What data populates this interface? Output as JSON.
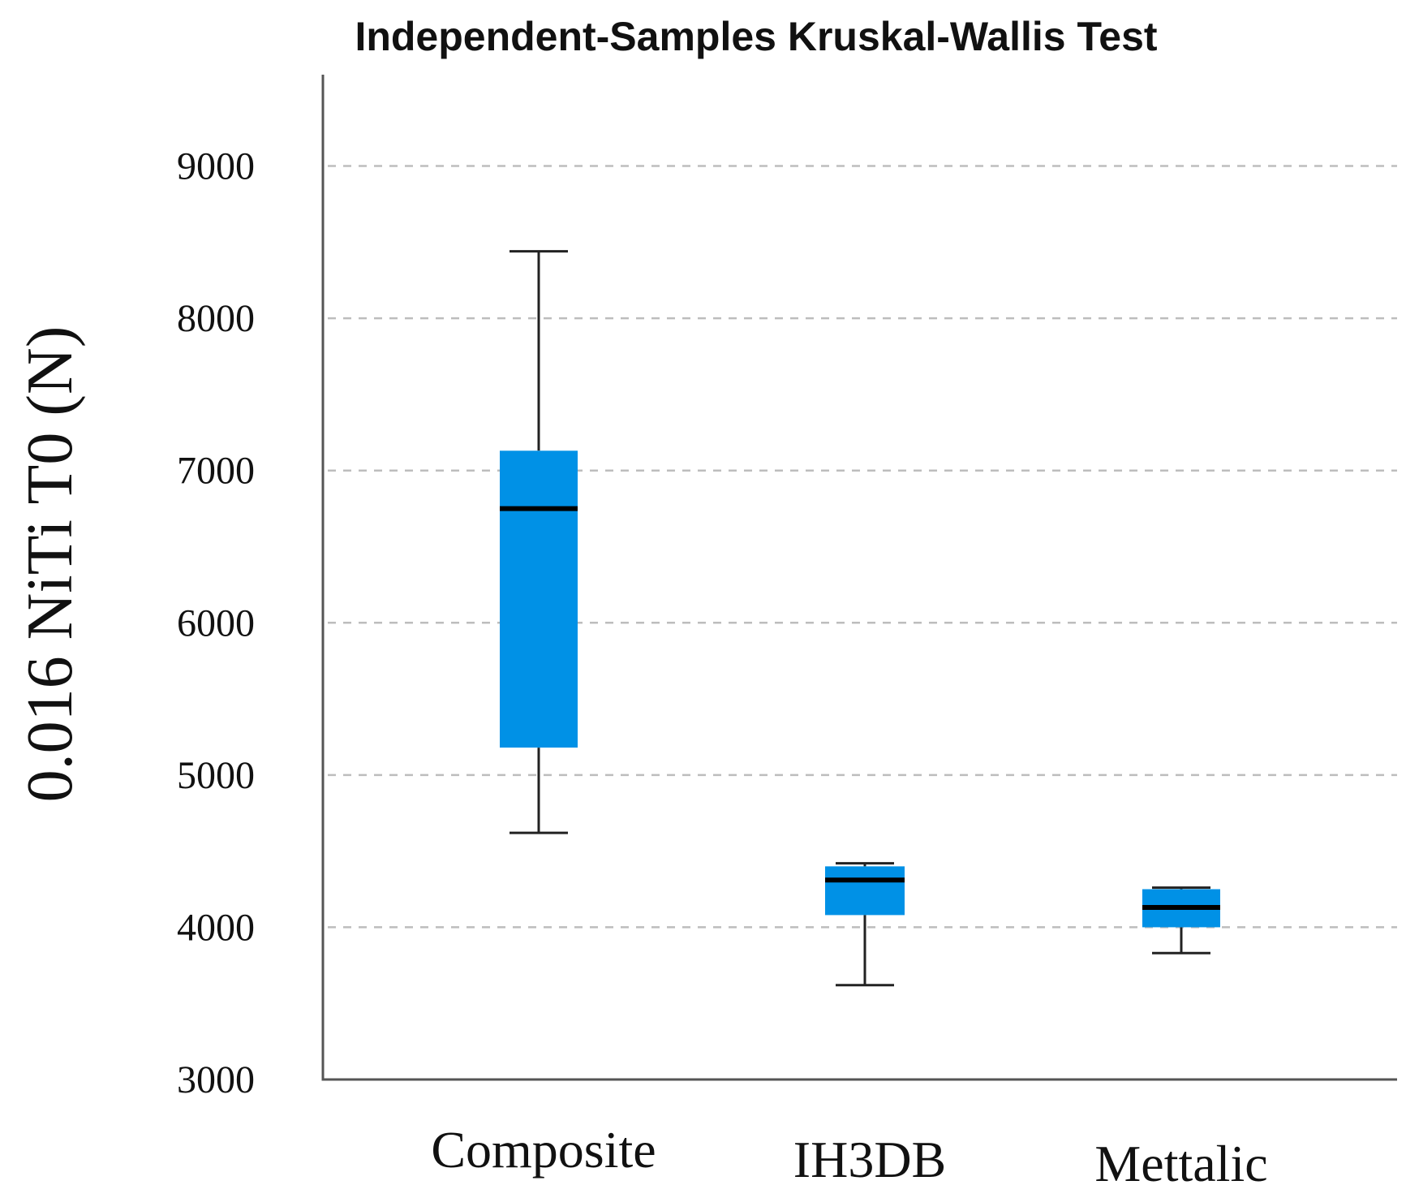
{
  "chart_data": {
    "type": "boxplot",
    "title": "Independent-Samples Kruskal-Wallis Test",
    "xlabel": "",
    "ylabel": "0.016 NiTi T0 (N)",
    "ylim": [
      3000,
      9600
    ],
    "yticks": [
      9000,
      8000,
      7000,
      6000,
      5000,
      4000,
      3000
    ],
    "grid": true,
    "categories": [
      "Composite",
      "IH3DB",
      "Mettalic"
    ],
    "boxes": [
      {
        "category": "Composite",
        "min": 4620,
        "q1": 5180,
        "median": 6750,
        "q3": 7130,
        "max": 8440
      },
      {
        "category": "IH3DB",
        "min": 3620,
        "q1": 4080,
        "median": 4310,
        "q3": 4400,
        "max": 4420
      },
      {
        "category": "Mettalic",
        "min": 3830,
        "q1": 4000,
        "median": 4130,
        "q3": 4250,
        "max": 4260
      }
    ],
    "colors": {
      "box": "#0091e6",
      "median": "#000000",
      "whisker": "#222222",
      "grid": "#bdbdbd",
      "axis": "#555555"
    }
  }
}
